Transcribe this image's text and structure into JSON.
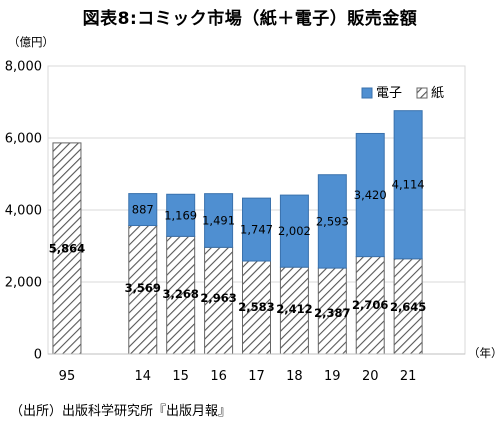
{
  "title": "図表8:コミック市場（紙＋電子）販売金額",
  "source": "（出所）出版科学研究所『出版月報』",
  "chart_data": {
    "type": "bar",
    "stacked": true,
    "categories": [
      "95",
      "14",
      "15",
      "16",
      "17",
      "18",
      "19",
      "20",
      "21"
    ],
    "series": [
      {
        "name": "紙",
        "values": [
          5864,
          3569,
          3268,
          2963,
          2583,
          2412,
          2387,
          2706,
          2645
        ],
        "labels": [
          "5,864",
          "3,569",
          "3,268",
          "2,963",
          "2,583",
          "2,412",
          "2,387",
          "2,706",
          "2,645"
        ],
        "pattern": "diagonal-hatch"
      },
      {
        "name": "電子",
        "values": [
          null,
          887,
          1169,
          1491,
          1747,
          2002,
          2593,
          3420,
          4114
        ],
        "labels": [
          "",
          "887",
          "1,169",
          "1,491",
          "1,747",
          "2,002",
          "2,593",
          "3,420",
          "4,114"
        ],
        "color": "#4f8fd1"
      }
    ],
    "yunit": "（億円）",
    "xunit": "（年）",
    "ylim": [
      0,
      8000
    ],
    "yticks": [
      0,
      2000,
      4000,
      6000,
      8000
    ],
    "ytick_labels": [
      "0",
      "2,000",
      "4,000",
      "6,000",
      "8,000"
    ],
    "grid": true,
    "legend": "top-right"
  }
}
